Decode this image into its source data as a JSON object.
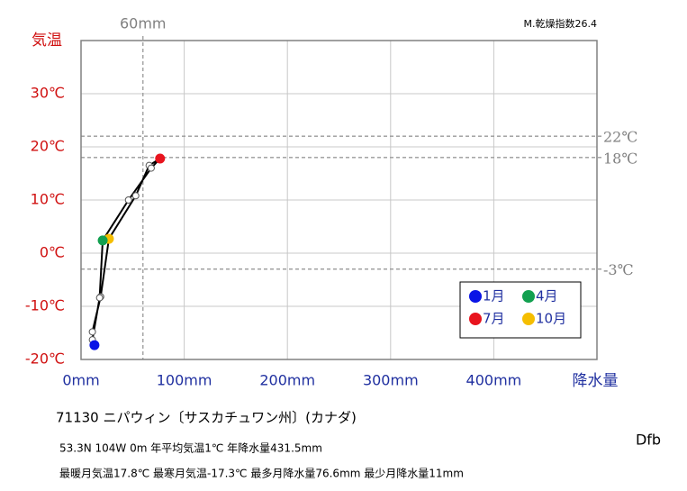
{
  "chart_data": {
    "type": "climograph",
    "title": "M.乾燥指数26.4",
    "y_label": "気温",
    "x_label": "降水量",
    "x": [
      13,
      11,
      18,
      21,
      46,
      68,
      76.6,
      66,
      53,
      27,
      19,
      11
    ],
    "values": [
      -17.3,
      -16.3,
      -8.4,
      2.4,
      10.0,
      16.0,
      17.8,
      16.5,
      10.8,
      2.7,
      -8.2,
      -14.8
    ],
    "colors": [
      "#0a14e6",
      "#ffffff",
      "#ffffff",
      "#12a050",
      "#ffffff",
      "#ffffff",
      "#e8141e",
      "#ffffff",
      "#ffffff",
      "#f5be00",
      "#ffffff",
      "#ffffff"
    ],
    "legend": [
      {
        "name": "1月",
        "color": "#0a14e6"
      },
      {
        "name": "4月",
        "color": "#12a050"
      },
      {
        "name": "7月",
        "color": "#e8141e"
      },
      {
        "name": "10月",
        "color": "#f5be00"
      }
    ],
    "xlim": [
      0,
      500
    ],
    "ylim": [
      -20,
      40
    ],
    "xticks": [
      {
        "value": 0,
        "label": "0mm"
      },
      {
        "value": 100,
        "label": "100mm"
      },
      {
        "value": 200,
        "label": "200mm"
      },
      {
        "value": 300,
        "label": "300mm"
      },
      {
        "value": 400,
        "label": "400mm"
      }
    ],
    "yticks": [
      {
        "value": -20,
        "label": "-20℃"
      },
      {
        "value": -10,
        "label": "-10℃"
      },
      {
        "value": 0,
        "label": "0℃"
      },
      {
        "value": 10,
        "label": "10℃"
      },
      {
        "value": 20,
        "label": "20℃"
      },
      {
        "value": 30,
        "label": "30℃"
      }
    ],
    "reference_lines": [
      {
        "axis": "x",
        "value": 60,
        "label": "60mm"
      },
      {
        "axis": "y",
        "value": 22,
        "label": "22℃"
      },
      {
        "axis": "y",
        "value": 18,
        "label": "18℃"
      },
      {
        "axis": "y",
        "value": -3,
        "label": "-3℃"
      }
    ],
    "grid": true,
    "station": "71130  ニパウィン〔サスカチュワン州〕(カナダ)",
    "info": [
      "53.3N  104W 0m  年平均気温1℃ 年降水量431.5mm",
      "最暖月気温17.8℃ 最寒月気温-17.3℃ 最多月降水量76.6mm 最少月降水量11mm"
    ],
    "climate": "Dfb"
  }
}
